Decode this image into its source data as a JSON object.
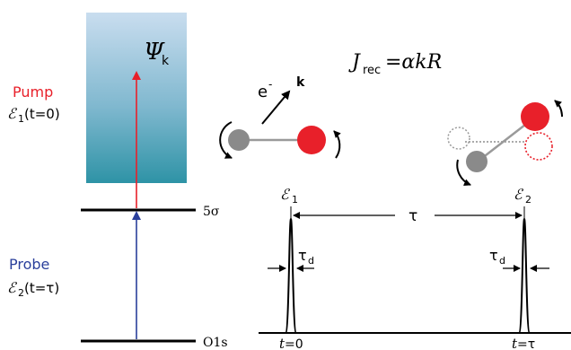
{
  "energy_levels": {
    "upper": "5σ",
    "lower": "O1s"
  },
  "continuum": {
    "symbol": "Ψ",
    "subscript": "k"
  },
  "pump": {
    "title": "Pump",
    "field_symbol": "ℰ",
    "field_index": "1",
    "field_arg": "(t=0)",
    "color": "#e8202a"
  },
  "probe": {
    "title": "Probe",
    "field_symbol": "ℰ",
    "field_index": "2",
    "field_arg": "(t=τ)",
    "color": "#2a3f9b"
  },
  "formula": {
    "lhs": "J",
    "lhs_sub": "rec",
    "rhs": "=αkR"
  },
  "electron": {
    "symbol": "e",
    "charge": "-",
    "momentum": "k"
  },
  "timeline": {
    "pulse1_label": "ℰ",
    "pulse1_index": "1",
    "pulse2_label": "ℰ",
    "pulse2_index": "2",
    "delay_label": "τ",
    "duration_label": "τ",
    "duration_sub": "d",
    "t1_var": "t",
    "t1_value": "=0",
    "t2_var": "t",
    "t2_value": "=τ"
  },
  "colors": {
    "atom_gray": "#8a8a8a",
    "atom_red": "#e8202a",
    "gradient_top": "#c9ddef",
    "gradient_bottom": "#2e93a6"
  }
}
